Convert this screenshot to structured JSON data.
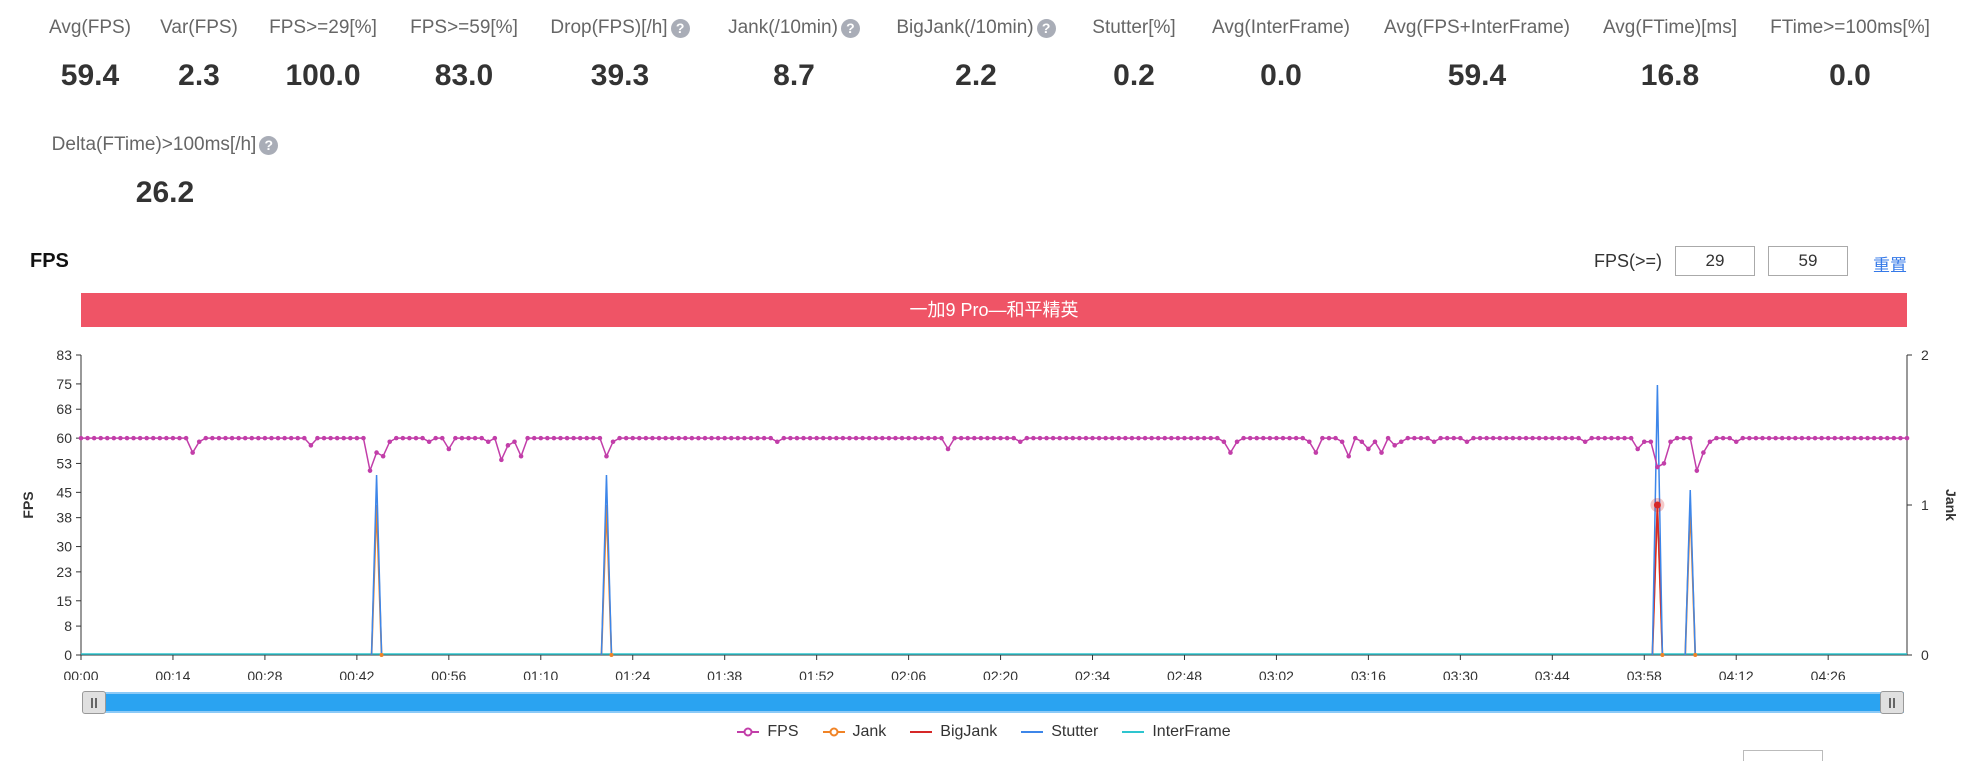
{
  "metrics": [
    {
      "label": "Avg(FPS)",
      "value": "59.4",
      "help": false
    },
    {
      "label": "Var(FPS)",
      "value": "2.3",
      "help": false
    },
    {
      "label": "FPS>=29[%]",
      "value": "100.0",
      "help": false
    },
    {
      "label": "FPS>=59[%]",
      "value": "83.0",
      "help": false
    },
    {
      "label": "Drop(FPS)[/h]",
      "value": "39.3",
      "help": true
    },
    {
      "label": "Jank(/10min)",
      "value": "8.7",
      "help": true
    },
    {
      "label": "BigJank(/10min)",
      "value": "2.2",
      "help": true
    },
    {
      "label": "Stutter[%]",
      "value": "0.2",
      "help": false
    },
    {
      "label": "Avg(InterFrame)",
      "value": "0.0",
      "help": false
    },
    {
      "label": "Avg(FPS+InterFrame)",
      "value": "59.4",
      "help": false
    },
    {
      "label": "Avg(FTime)[ms]",
      "value": "16.8",
      "help": false
    },
    {
      "label": "FTime>=100ms[%]",
      "value": "0.0",
      "help": false
    },
    {
      "label": "Delta(FTime)>100ms[/h]",
      "value": "26.2",
      "help": true
    }
  ],
  "help_glyph": "?",
  "section": {
    "title": "FPS"
  },
  "threshold": {
    "label": "FPS(>=)",
    "low": "29",
    "high": "59",
    "reset_label": "重置"
  },
  "colors": {
    "fps": "#c23ea9",
    "jank": "#f08326",
    "bigjank": "#d62828",
    "stutter": "#3d86e9",
    "interframe": "#2ec5cf",
    "banner": "#ef5466",
    "slider": "#2aa3f1"
  },
  "chart_data": {
    "type": "line",
    "title": "一加9 Pro—和平精英",
    "xlabel": "",
    "ylabel": "FPS",
    "y2label": "Jank",
    "ylim": [
      0,
      83
    ],
    "y2lim": [
      0,
      2
    ],
    "yticks": [
      "0",
      "8",
      "15",
      "23",
      "30",
      "38",
      "45",
      "53",
      "60",
      "68",
      "75",
      "83"
    ],
    "y2ticks": [
      "0",
      "1",
      "2"
    ],
    "xlim_seconds": [
      0,
      278
    ],
    "xticks": [
      "00:00",
      "00:14",
      "00:28",
      "00:42",
      "00:56",
      "01:10",
      "01:24",
      "01:38",
      "01:52",
      "02:06",
      "02:20",
      "02:34",
      "02:48",
      "03:02",
      "03:16",
      "03:30",
      "03:44",
      "03:58",
      "04:12",
      "04:26"
    ],
    "grid": false,
    "legend_position": "bottom",
    "series": [
      {
        "name": "FPS",
        "axis": "left",
        "marker": "circle",
        "baseline": 60,
        "dips": [
          [
            17,
            56
          ],
          [
            18,
            59
          ],
          [
            35,
            58
          ],
          [
            44,
            51
          ],
          [
            45,
            56
          ],
          [
            46,
            55
          ],
          [
            47,
            59
          ],
          [
            53,
            59
          ],
          [
            56,
            57
          ],
          [
            62,
            59
          ],
          [
            64,
            54
          ],
          [
            65,
            58
          ],
          [
            66,
            59
          ],
          [
            67,
            55
          ],
          [
            80,
            55
          ],
          [
            81,
            59
          ],
          [
            106,
            59
          ],
          [
            132,
            57
          ],
          [
            143,
            59
          ],
          [
            174,
            59
          ],
          [
            175,
            56
          ],
          [
            176,
            59
          ],
          [
            187,
            59
          ],
          [
            188,
            56
          ],
          [
            192,
            59
          ],
          [
            193,
            55
          ],
          [
            195,
            59
          ],
          [
            196,
            57
          ],
          [
            197,
            59
          ],
          [
            198,
            56
          ],
          [
            200,
            58
          ],
          [
            201,
            59
          ],
          [
            206,
            59
          ],
          [
            211,
            59
          ],
          [
            229,
            59
          ],
          [
            237,
            57
          ],
          [
            238,
            59
          ],
          [
            239,
            59
          ],
          [
            240,
            52
          ],
          [
            241,
            53
          ],
          [
            242,
            59
          ],
          [
            246,
            51
          ],
          [
            247,
            56
          ],
          [
            248,
            59
          ],
          [
            252,
            59
          ]
        ]
      },
      {
        "name": "Jank",
        "axis": "right",
        "events": [
          [
            45,
            1
          ],
          [
            80,
            1
          ],
          [
            240,
            1
          ],
          [
            245,
            1
          ]
        ]
      },
      {
        "name": "BigJank",
        "axis": "right",
        "events": [
          [
            240,
            1
          ]
        ]
      },
      {
        "name": "Stutter",
        "axis": "right",
        "events": [
          [
            45,
            1.2
          ],
          [
            80,
            1.2
          ],
          [
            240,
            1.8
          ],
          [
            245,
            1.1
          ]
        ]
      },
      {
        "name": "InterFrame",
        "axis": "left",
        "constant": 0
      }
    ]
  }
}
